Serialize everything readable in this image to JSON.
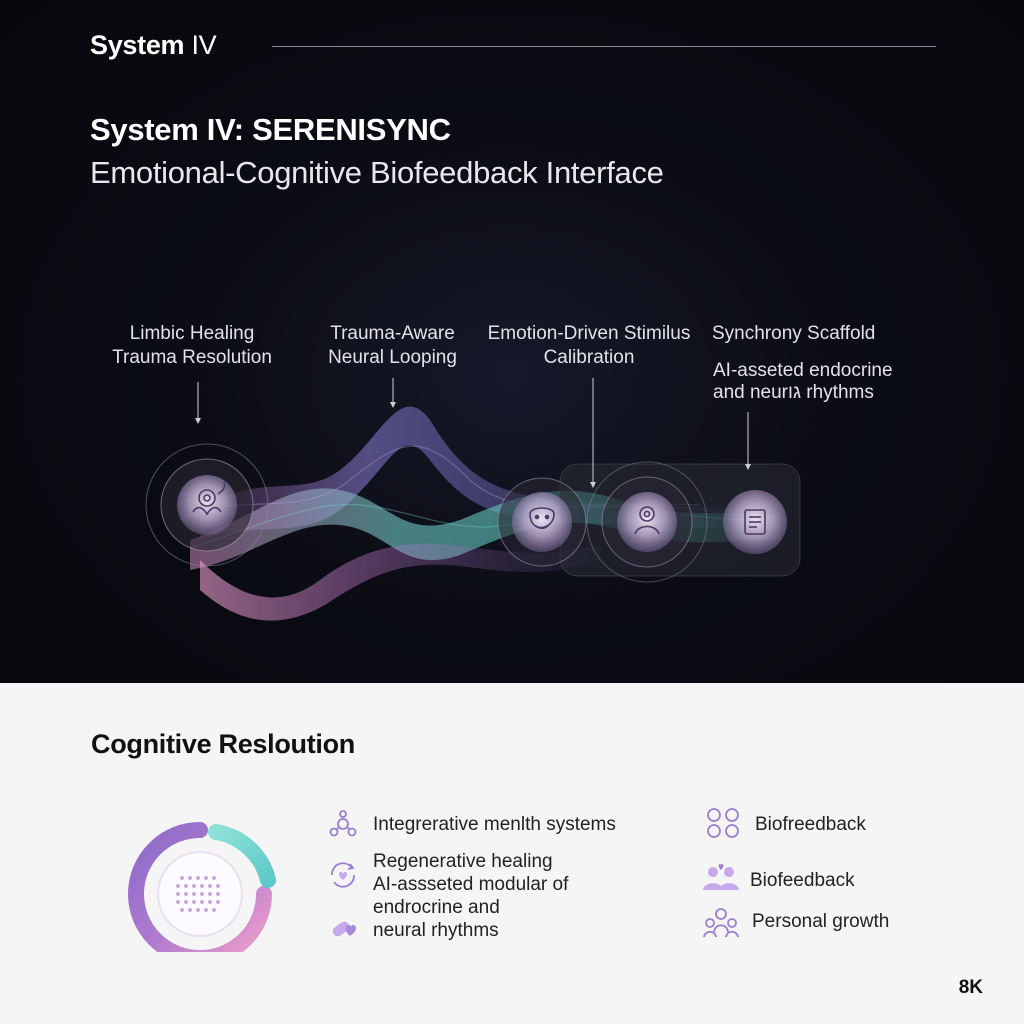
{
  "header": {
    "brand_bold": "System",
    "brand_light": "IV",
    "title": "System IV: SERENISYNC",
    "subtitle": "Emotional-Cognitive Biofeedback Interface"
  },
  "flow": {
    "nodes": [
      {
        "lines": [
          "Limbic Healing",
          "Trauma Resolution"
        ],
        "icon": "lotus-brain-icon"
      },
      {
        "lines": [
          "Trauma-Aware",
          "Neural Looping"
        ],
        "icon": "wave-peak-marker"
      },
      {
        "lines": [
          "Emotion-Driven Stimilus",
          "Calibration"
        ],
        "icon": "face-icon"
      },
      {
        "lines": [
          "Synchrony Scaffold"
        ],
        "detail": [
          "AI-asseted endocrine",
          "and neurגו rhythms"
        ],
        "icon": "document-icon"
      }
    ],
    "center_icon": "person-heart-icon"
  },
  "section": {
    "title": "Cognitive Resloution",
    "left_items": [
      {
        "icon": "molecule-icon",
        "lines": [
          "Integrerative menlth systems"
        ]
      },
      {
        "icon": "cycle-heart-icon",
        "lines": [
          "Regenerative healing",
          "AI-assseted modular of"
        ]
      },
      {
        "icon": "pill-heart-icon",
        "lines": [
          "endrocrine and",
          "neural rhythms"
        ]
      }
    ],
    "right_items": [
      {
        "icon": "nodes-icon",
        "lines": [
          "Biofreedback"
        ]
      },
      {
        "icon": "people-icon",
        "lines": [
          "Biofeedback"
        ]
      },
      {
        "icon": "group-growth-icon",
        "lines": [
          "Personal growth"
        ]
      }
    ]
  },
  "badge": "8K",
  "colors": {
    "accent_purple": "#9a7fd1",
    "accent_teal": "#5fd1c0",
    "accent_pink": "#e38fc4",
    "dark_bg": "#07080c"
  }
}
